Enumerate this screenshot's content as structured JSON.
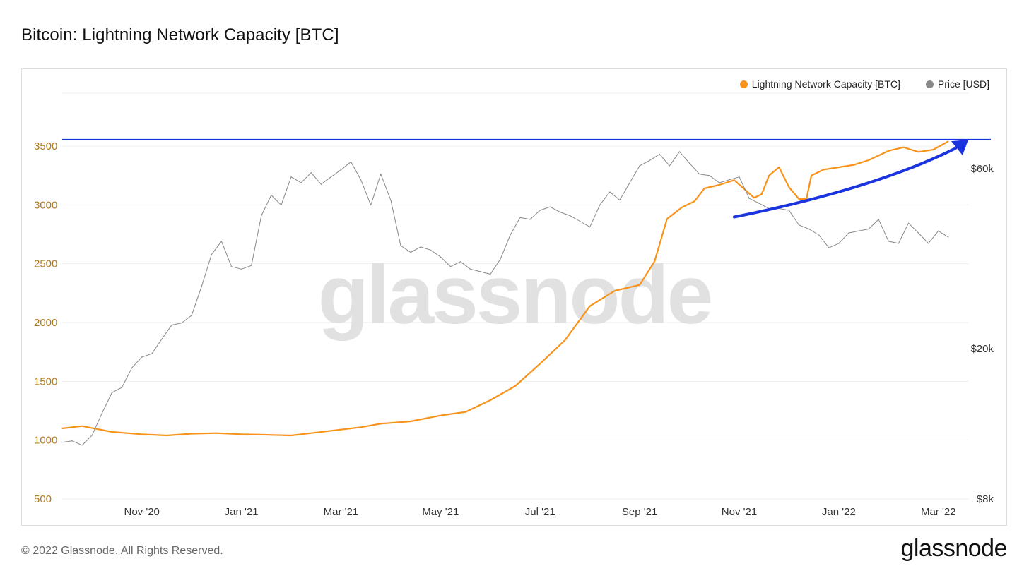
{
  "header": {
    "title": "Bitcoin: Lightning Network Capacity [BTC]"
  },
  "footer": {
    "copyright": "© 2022 Glassnode. All Rights Reserved.",
    "brand": "glassnode"
  },
  "watermark": "glassnode",
  "colors": {
    "capacity": "#f7931a",
    "price": "#888888",
    "annotation": "#1a34e0",
    "left_axis_text": "#b07b1e",
    "grid": "#eeeeee"
  },
  "chart_data": {
    "type": "line",
    "title": "Bitcoin: Lightning Network Capacity [BTC]",
    "x_ticks": [
      "Nov '20",
      "Jan '21",
      "Mar '21",
      "May '21",
      "Jul '21",
      "Sep '21",
      "Nov '21",
      "Jan '22",
      "Mar '22"
    ],
    "x_tick_months": [
      2,
      4,
      6,
      8,
      10,
      12,
      14,
      16,
      18
    ],
    "x_range_months": [
      0.4,
      18.6
    ],
    "legend": [
      {
        "name": "Lightning Network Capacity [BTC]",
        "color": "#f7931a"
      },
      {
        "name": "Price [USD]",
        "color": "#888888"
      }
    ],
    "y_left": {
      "label": "Lightning Network Capacity [BTC]",
      "ticks": [
        500,
        1000,
        1500,
        2000,
        2500,
        3000,
        3500
      ],
      "range": [
        500,
        3950
      ]
    },
    "y_right": {
      "label": "Price [USD]",
      "scale": "log",
      "ticks": [
        8000,
        20000,
        60000
      ],
      "tick_labels": [
        "$8k",
        "$20k",
        "$60k"
      ],
      "range": [
        8000,
        95000
      ]
    },
    "series": [
      {
        "name": "Lightning Network Capacity [BTC]",
        "axis": "left",
        "x": [
          0.4,
          0.8,
          1.4,
          2.0,
          2.5,
          3.0,
          3.5,
          4.0,
          4.3,
          5.0,
          5.4,
          6.0,
          6.4,
          6.8,
          7.4,
          8.0,
          8.5,
          9.0,
          9.5,
          10.0,
          10.5,
          11.0,
          11.5,
          12.0,
          12.3,
          12.55,
          12.85,
          13.1,
          13.3,
          13.6,
          13.9,
          14.3,
          14.45,
          14.6,
          14.8,
          15.0,
          15.2,
          15.35,
          15.45,
          15.7,
          16.0,
          16.3,
          16.6,
          17.0,
          17.3,
          17.6,
          17.9,
          18.2
        ],
        "values": [
          1100,
          1120,
          1070,
          1050,
          1040,
          1055,
          1060,
          1050,
          1048,
          1040,
          1060,
          1090,
          1110,
          1140,
          1160,
          1210,
          1240,
          1340,
          1460,
          1650,
          1850,
          2140,
          2270,
          2320,
          2520,
          2880,
          2980,
          3030,
          3140,
          3170,
          3210,
          3060,
          3090,
          3250,
          3320,
          3150,
          3050,
          3050,
          3250,
          3300,
          3320,
          3340,
          3380,
          3460,
          3490,
          3450,
          3470,
          3540
        ]
      },
      {
        "name": "Price [USD]",
        "axis": "right",
        "x": [
          0.4,
          0.6,
          0.8,
          1.0,
          1.2,
          1.4,
          1.6,
          1.8,
          2.0,
          2.2,
          2.4,
          2.6,
          2.8,
          3.0,
          3.2,
          3.4,
          3.6,
          3.8,
          4.0,
          4.2,
          4.4,
          4.6,
          4.8,
          5.0,
          5.2,
          5.4,
          5.6,
          5.8,
          6.0,
          6.2,
          6.4,
          6.6,
          6.8,
          7.0,
          7.2,
          7.4,
          7.6,
          7.8,
          8.0,
          8.2,
          8.4,
          8.6,
          8.8,
          9.0,
          9.2,
          9.4,
          9.6,
          9.8,
          10.0,
          10.2,
          10.4,
          10.6,
          10.8,
          11.0,
          11.2,
          11.4,
          11.6,
          11.8,
          12.0,
          12.2,
          12.4,
          12.6,
          12.8,
          13.0,
          13.2,
          13.4,
          13.6,
          13.8,
          14.0,
          14.2,
          14.4,
          14.6,
          14.8,
          15.0,
          15.2,
          15.4,
          15.6,
          15.8,
          16.0,
          16.2,
          16.4,
          16.6,
          16.8,
          17.0,
          17.2,
          17.4,
          17.6,
          17.8,
          18.0,
          18.2
        ],
        "values": [
          11300,
          11400,
          11100,
          11800,
          13500,
          15300,
          15800,
          17800,
          19000,
          19400,
          21200,
          23100,
          23400,
          24500,
          29200,
          35500,
          38500,
          33000,
          32500,
          33200,
          45000,
          51000,
          48000,
          57000,
          55000,
          58500,
          54500,
          57000,
          59500,
          62500,
          56000,
          48000,
          58000,
          49500,
          37500,
          36000,
          37200,
          36500,
          35000,
          33000,
          34000,
          32500,
          32000,
          31500,
          34500,
          40000,
          44500,
          44000,
          46500,
          47500,
          46000,
          45000,
          43500,
          42000,
          48000,
          52000,
          49500,
          55000,
          61000,
          63000,
          65500,
          61000,
          66500,
          62000,
          58000,
          57500,
          55000,
          56000,
          57000,
          50000,
          48500,
          47000,
          47000,
          46500,
          42500,
          41500,
          40000,
          37000,
          38000,
          40500,
          41000,
          41500,
          44000,
          38500,
          38000,
          43000,
          40500,
          38000,
          41000,
          39500
        ]
      }
    ],
    "annotations": [
      {
        "type": "horizontal-line",
        "axis": "left",
        "y": 3555,
        "color": "#1a34e0"
      },
      {
        "type": "arrow",
        "axis": "left",
        "from": [
          13.9,
          2897
        ],
        "to": [
          18.6,
          3553
        ],
        "color": "#1a34e0"
      }
    ]
  }
}
